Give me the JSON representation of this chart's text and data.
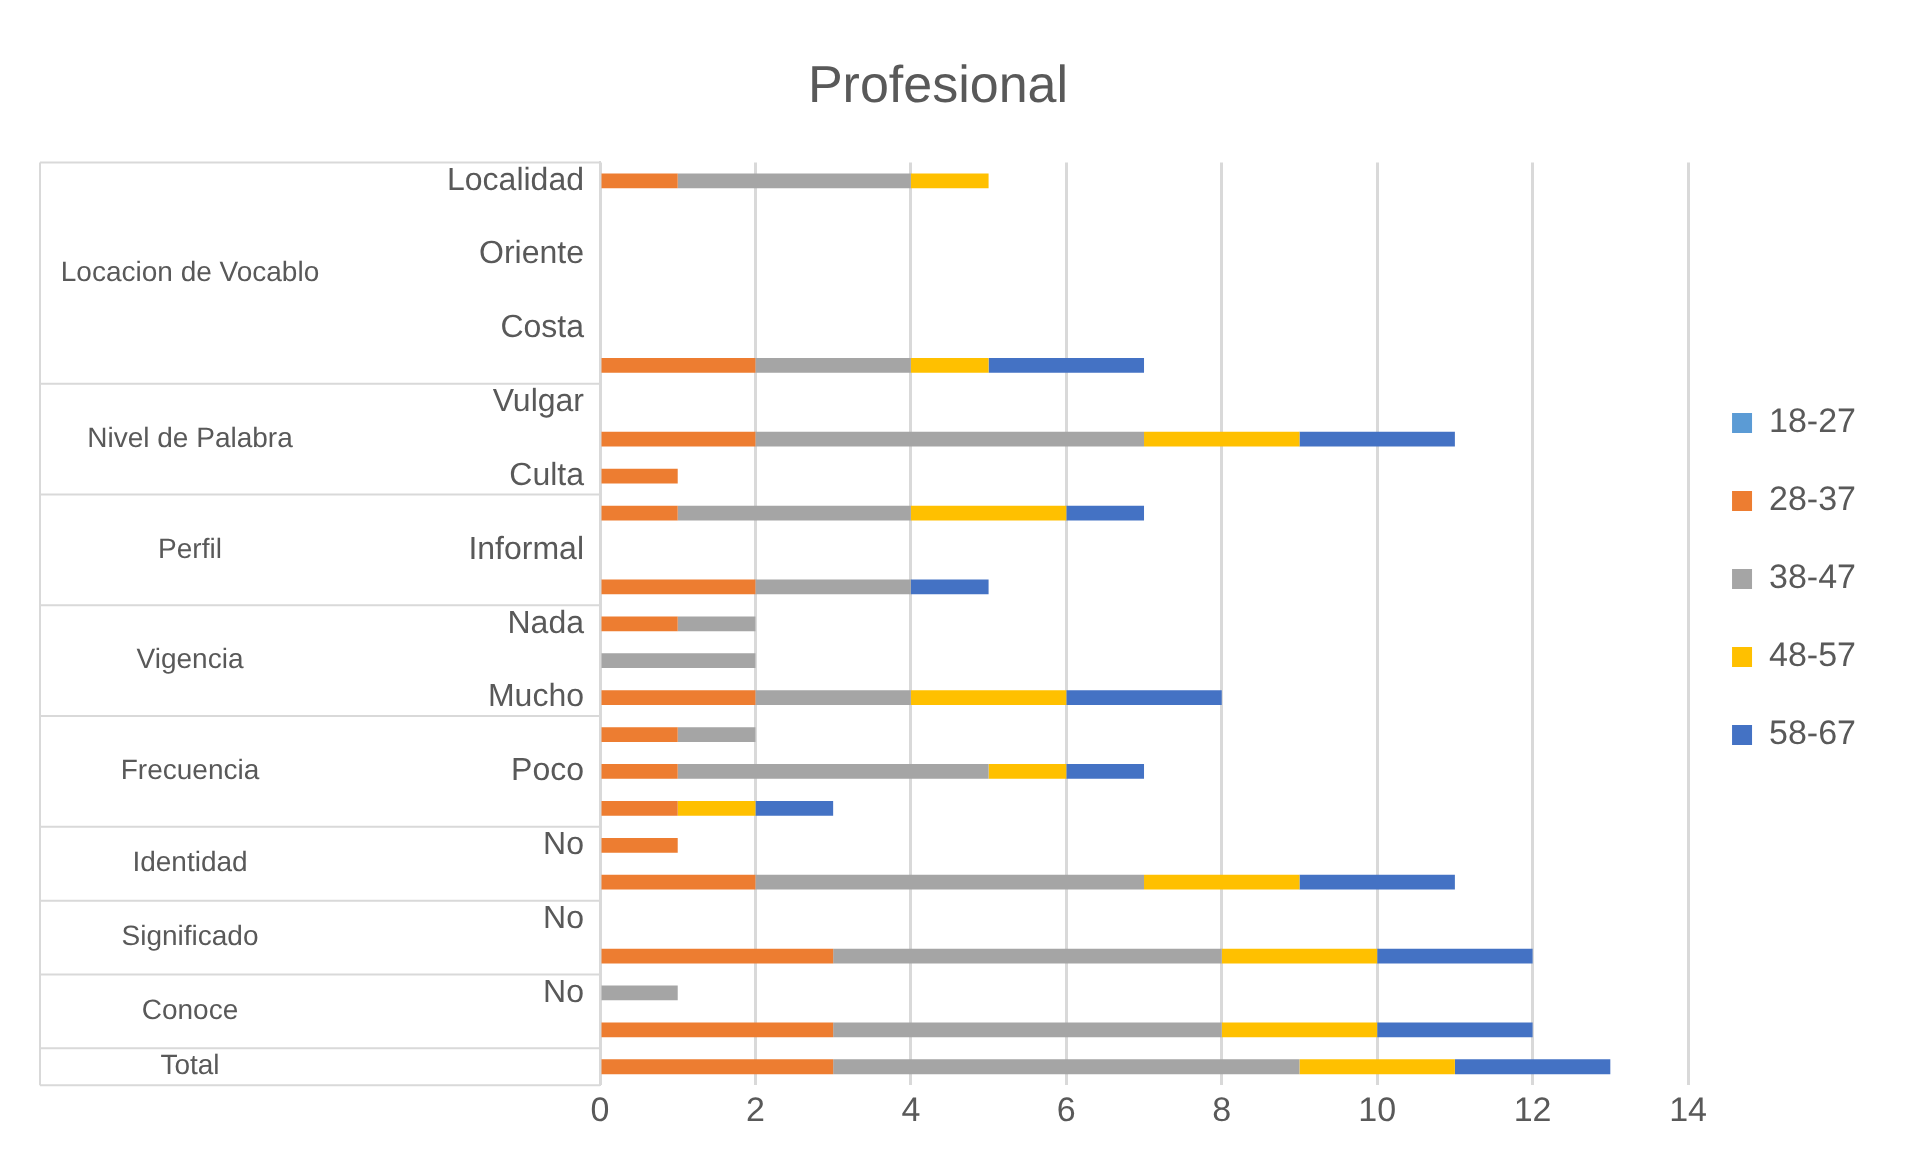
{
  "chart_data": {
    "type": "bar",
    "orientation": "horizontal",
    "stacked": true,
    "title": "Profesional",
    "categories": [
      "Localidad",
      null,
      "Oriente",
      null,
      "Costa",
      null,
      "Vulgar",
      null,
      "Culta",
      null,
      "Informal",
      null,
      "Nada",
      null,
      "Mucho",
      null,
      "Poco",
      null,
      "No",
      null,
      "No",
      null,
      "No",
      null,
      null
    ],
    "series": [
      {
        "name": "18-27",
        "color": "#5b9bd5",
        "values": [
          null,
          null,
          null,
          null,
          null,
          null,
          null,
          null,
          null,
          null,
          null,
          null,
          null,
          null,
          null,
          null,
          null,
          null,
          null,
          null,
          null,
          null,
          null,
          null,
          null
        ]
      },
      {
        "name": "28-37",
        "color": "#ed7d31",
        "values": [
          1,
          null,
          null,
          null,
          null,
          2,
          null,
          2,
          1,
          1,
          null,
          2,
          1,
          null,
          2,
          1,
          1,
          1,
          1,
          2,
          null,
          3,
          null,
          3,
          3
        ]
      },
      {
        "name": "38-47",
        "color": "#a5a5a5",
        "values": [
          3,
          null,
          null,
          null,
          null,
          2,
          null,
          5,
          null,
          3,
          null,
          2,
          1,
          2,
          2,
          1,
          4,
          null,
          null,
          5,
          null,
          5,
          1,
          5,
          6
        ]
      },
      {
        "name": "48-57",
        "color": "#ffc000",
        "values": [
          1,
          null,
          null,
          null,
          null,
          1,
          null,
          2,
          null,
          2,
          null,
          null,
          null,
          null,
          2,
          null,
          1,
          1,
          null,
          2,
          null,
          2,
          null,
          2,
          2
        ]
      },
      {
        "name": "58-67",
        "color": "#4472c4",
        "values": [
          null,
          null,
          null,
          null,
          null,
          2,
          null,
          2,
          null,
          1,
          null,
          1,
          null,
          null,
          2,
          null,
          1,
          1,
          null,
          2,
          null,
          2,
          null,
          2,
          2
        ]
      }
    ],
    "annotations": [
      "Locacion de Vocablo",
      "Nivel de Palabra",
      "Perfil",
      "Vigencia",
      "Frecuencia",
      "Identidad",
      "Significado",
      "Conoce",
      "Total"
    ],
    "xlim": [
      0,
      14
    ],
    "xticks": [
      0,
      2,
      4,
      6,
      8,
      10,
      12,
      14
    ],
    "grid": "x",
    "legend": "right"
  }
}
